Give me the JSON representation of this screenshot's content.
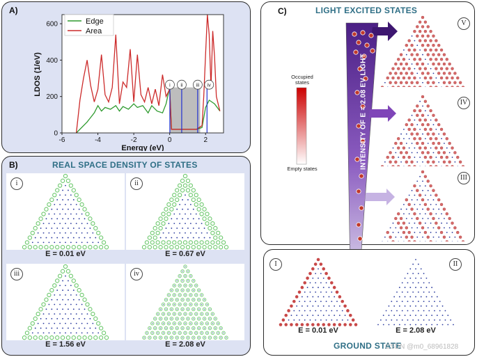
{
  "panel_a": {
    "label": "A)",
    "chart_data": {
      "type": "line",
      "xlabel": "Energy (eV)",
      "ylabel": "LDOS (1/eV)",
      "xlim": [
        -6,
        3
      ],
      "ylim": [
        0,
        650
      ],
      "x_ticks": [
        "-6",
        "-4",
        "-2",
        "0",
        "2"
      ],
      "y_ticks": [
        "0",
        "200",
        "400",
        "600"
      ],
      "legend_position": "top-left",
      "series": [
        {
          "name": "Edge",
          "color": "#2e9a2e",
          "x": [
            -5.2,
            -4.6,
            -4.2,
            -4.0,
            -3.8,
            -3.6,
            -3.3,
            -3.0,
            -2.8,
            -2.6,
            -2.3,
            -2.0,
            -1.8,
            -1.5,
            -1.2,
            -1.0,
            -0.7,
            -0.4,
            -0.2,
            0.0,
            0.1,
            0.5,
            1.0,
            1.5,
            1.8,
            2.0,
            2.2,
            2.5,
            2.8
          ],
          "y": [
            0,
            60,
            110,
            150,
            120,
            140,
            130,
            150,
            120,
            145,
            130,
            160,
            140,
            150,
            110,
            150,
            120,
            110,
            160,
            250,
            20,
            20,
            20,
            20,
            30,
            140,
            180,
            160,
            120
          ]
        },
        {
          "name": "Area",
          "color": "#cc2a2a",
          "x": [
            -5.2,
            -5.0,
            -4.8,
            -4.6,
            -4.4,
            -4.2,
            -4.0,
            -3.8,
            -3.6,
            -3.4,
            -3.2,
            -3.0,
            -2.8,
            -2.6,
            -2.4,
            -2.2,
            -2.0,
            -1.8,
            -1.6,
            -1.4,
            -1.2,
            -1.0,
            -0.8,
            -0.6,
            -0.4,
            -0.2,
            0.0,
            0.1,
            0.5,
            1.0,
            1.5,
            1.8,
            1.9,
            2.0,
            2.1,
            2.2,
            2.3,
            2.4,
            2.5,
            2.6,
            2.8
          ],
          "y": [
            0,
            180,
            300,
            400,
            260,
            170,
            240,
            430,
            210,
            170,
            250,
            540,
            160,
            280,
            250,
            460,
            170,
            430,
            210,
            170,
            250,
            160,
            240,
            150,
            320,
            200,
            240,
            20,
            20,
            20,
            20,
            40,
            200,
            430,
            650,
            540,
            250,
            560,
            420,
            200,
            120
          ]
        }
      ],
      "highlight_x": [
        0,
        1.7
      ],
      "marker_lines": [
        {
          "x": 0.01,
          "label": "i"
        },
        {
          "x": 0.67,
          "label": "ii"
        },
        {
          "x": 1.56,
          "label": "iii"
        },
        {
          "x": 2.08,
          "label": "iv"
        }
      ]
    }
  },
  "panel_b": {
    "label": "B)",
    "title": "REAL SPACE DENSITY OF STATES",
    "cells": [
      {
        "num": "i",
        "energy": "E = 0.01 eV"
      },
      {
        "num": "ii",
        "energy": "E = 0.67 eV"
      },
      {
        "num": "iii",
        "energy": "E = 1.56 eV"
      },
      {
        "num": "iv",
        "energy": "E = 2.08 eV"
      }
    ]
  },
  "panel_c": {
    "label": "C)",
    "title": "LIGHT EXCITED STATES",
    "beam_text": "INTENSITY OF E = 2.08 EV LIGHT",
    "colorbar": {
      "top": "Occupied states",
      "bottom": "Empty states",
      "top_color": "#cc0000",
      "bottom_color": "#ffffff"
    },
    "levels": [
      {
        "num": "V"
      },
      {
        "num": "IV"
      },
      {
        "num": "III"
      }
    ]
  },
  "ground": {
    "title": "GROUND STATE",
    "states": [
      {
        "num": "I",
        "energy": "E = 0.01 eV"
      },
      {
        "num": "II",
        "energy": "E = 2.08 eV"
      }
    ]
  },
  "watermark": "CSDN @m0_68961828",
  "colors": {
    "panel_bg": "#dde2f3",
    "edge_green": "#5cc45c",
    "site_blue": "#2a3a9e",
    "occupied_red": "#cc3333",
    "beam_purple": "#5b2b8f"
  }
}
